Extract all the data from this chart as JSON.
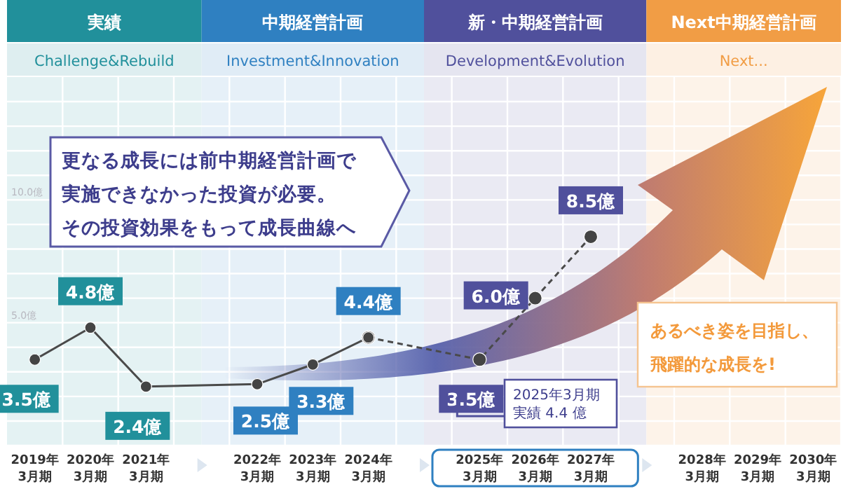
{
  "chart_data": {
    "type": "line",
    "categories": [
      "2019年\n3月期",
      "2020年\n3月期",
      "2021年\n3月期",
      null,
      "2022年\n3月期",
      "2023年\n3月期",
      "2024年\n3月期",
      null,
      "2025年\n3月期",
      "2026年\n3月期",
      "2027年\n3月期",
      null,
      "2028年\n3月期",
      "2029年\n3月期",
      "2030年\n3月期"
    ],
    "series": [
      {
        "color": "#4a4a4a",
        "line_style": "solid",
        "values": [
          3.5,
          4.8,
          2.4,
          null,
          2.5,
          3.3,
          4.4,
          null,
          null,
          null,
          null,
          null,
          null,
          null,
          null
        ],
        "value_labels": [
          "3.5億",
          "4.8億",
          "2.4億",
          null,
          "2.5億",
          "3.3億",
          "4.4億",
          null,
          null,
          null,
          null,
          null,
          null,
          null,
          null
        ]
      },
      {
        "color": "#4a4a4a",
        "line_style": "dashed",
        "values": [
          null,
          null,
          null,
          null,
          null,
          null,
          4.4,
          null,
          3.5,
          6.0,
          8.5,
          null,
          null,
          null,
          null
        ],
        "value_labels": [
          null,
          null,
          null,
          null,
          null,
          null,
          null,
          null,
          "3.5億",
          "6.0億",
          "8.5億",
          null,
          null,
          null,
          null
        ]
      }
    ],
    "marker": "circle",
    "ylim": [
      0,
      15
    ],
    "yticks": [
      {
        "value": 0,
        "label": null
      },
      {
        "value": 1,
        "label": null
      },
      {
        "value": 2,
        "label": null
      },
      {
        "value": 3,
        "label": null
      },
      {
        "value": 4,
        "label": null
      },
      {
        "value": 5,
        "label": "5.0億"
      },
      {
        "value": 6,
        "label": null
      },
      {
        "value": 7,
        "label": null
      },
      {
        "value": 8,
        "label": null
      },
      {
        "value": 9,
        "label": null
      },
      {
        "value": 10,
        "label": "10.0億"
      },
      {
        "value": 11,
        "label": null
      },
      {
        "value": 12,
        "label": null
      },
      {
        "value": 13,
        "label": null
      },
      {
        "value": 14,
        "label": null
      }
    ],
    "grid": true,
    "annotations": [
      "実績",
      "中期経営計画",
      "新・中期経営計画",
      "Next中期経営計画",
      "Challenge&Rebuild",
      "Investment&Innovation",
      "Development&Evolution",
      "Next...",
      "更なる成長には前中期経営計画で実施できなかった投資が必要。その投資効果をもって成長曲線へ",
      "あるべき姿を目指し、飛躍的な成長を!",
      "2025年3月期実績 4.4 億"
    ]
  }
}
